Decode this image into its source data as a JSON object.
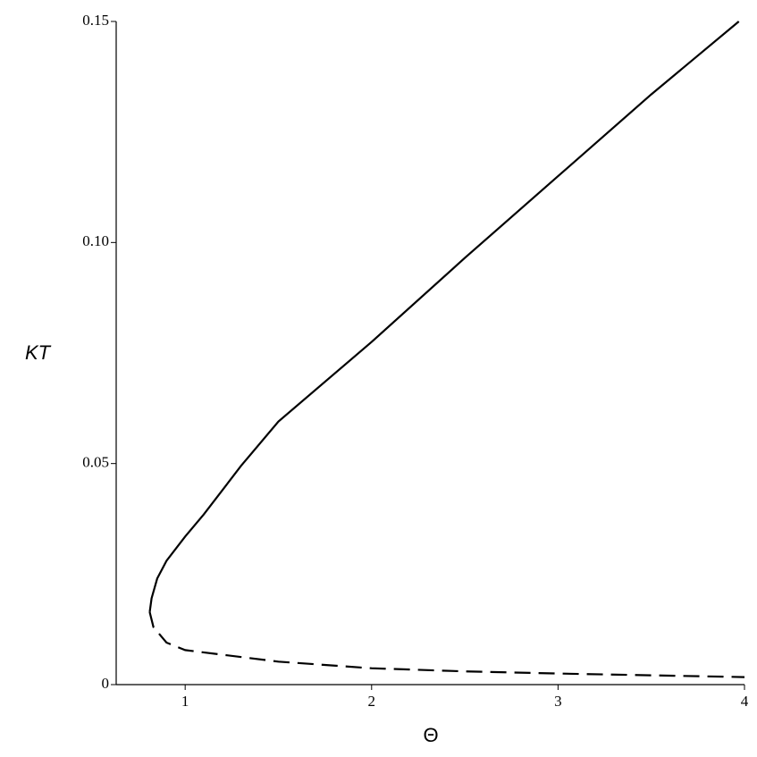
{
  "chart_data": {
    "type": "line",
    "xlabel": "Θ",
    "ylabel": "KT",
    "xlim": [
      0.63,
      4
    ],
    "ylim": [
      0,
      0.15
    ],
    "xticks": [
      1,
      2,
      3,
      4
    ],
    "yticks": [
      0,
      0.05,
      {
        "value": 0.1,
        "label": "0.10"
      },
      0.15
    ],
    "series": [
      {
        "color": "#000000",
        "style": "solid",
        "x": [
          0.81,
          0.82,
          0.85,
          0.9,
          1,
          1.1,
          1.3,
          1.5,
          2,
          2.5,
          3,
          3.5,
          3.97
        ],
        "values": [
          0.0164,
          0.0195,
          0.024,
          0.028,
          0.0335,
          0.0385,
          0.0495,
          0.0595,
          0.0775,
          0.0965,
          0.115,
          0.1335,
          0.15
        ]
      },
      {
        "color": "#000000",
        "style": "dashed",
        "x": [
          0.81,
          0.83,
          0.9,
          1,
          1.5,
          2,
          2.5,
          3,
          3.5,
          4
        ],
        "values": [
          0.0164,
          0.013,
          0.0095,
          0.0078,
          0.0052,
          0.0037,
          0.003,
          0.0025,
          0.0021,
          0.0017
        ]
      }
    ]
  }
}
